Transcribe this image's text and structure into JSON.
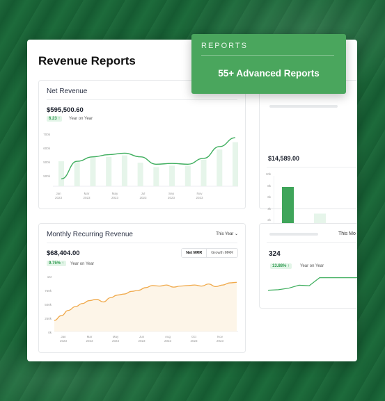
{
  "page": {
    "title": "Revenue Reports"
  },
  "banner": {
    "label": "REPORTS",
    "heading": "55+ Advanced Reports"
  },
  "net_revenue": {
    "title": "Net Revenue",
    "amount": "$595,500.60",
    "change": "6.23 ↑",
    "period": "Year on Year",
    "y_ticks": [
      "700k",
      "600k",
      "500k",
      "500k"
    ],
    "x_ticks": [
      {
        "month": "Jan",
        "year": "2023"
      },
      {
        "month": "Mar",
        "year": "2023"
      },
      {
        "month": "May",
        "year": "2023"
      },
      {
        "month": "Jul",
        "year": "2023"
      },
      {
        "month": "Sep",
        "year": "2023"
      },
      {
        "month": "Nov",
        "year": "2023"
      }
    ]
  },
  "side_top": {
    "amount": "$14,589.00",
    "y_ticks": [
      "10k",
      "8k",
      "6k",
      "4k",
      "2k",
      "0k"
    ],
    "x_ticks": [
      "Current",
      "Y-25"
    ]
  },
  "mrr": {
    "title": "Monthly Recurring Revenue",
    "dropdown": "This Year ⌄",
    "amount": "$68,404.00",
    "change": "9.75% ↑",
    "period": "Year on Year",
    "toggle": [
      "Net MRR",
      "Growth MRR"
    ],
    "y_ticks": [
      "1M",
      "750k",
      "500k",
      "250k",
      "0k"
    ],
    "x_ticks": [
      {
        "month": "Jan",
        "year": "2023"
      },
      {
        "month": "Mar",
        "year": "2023"
      },
      {
        "month": "May",
        "year": "2023"
      },
      {
        "month": "Jun",
        "year": "2023"
      },
      {
        "month": "Aug",
        "year": "2023"
      },
      {
        "month": "Oct",
        "year": "2023"
      },
      {
        "month": "Nov",
        "year": "2023"
      }
    ]
  },
  "side_bottom": {
    "dropdown": "This Mo",
    "amount": "324",
    "change": "13.88% ↑",
    "period": "Year on Year"
  },
  "chart_data": [
    {
      "type": "line",
      "title": "Net Revenue",
      "x": [
        "Jan",
        "Feb",
        "Mar",
        "Apr",
        "May",
        "Jun",
        "Jul",
        "Aug",
        "Sep",
        "Oct",
        "Nov",
        "Dec"
      ],
      "series": [
        {
          "values": [
            450,
            570,
            600,
            615,
            625,
            600,
            550,
            555,
            550,
            590,
            670,
            730
          ]
        }
      ],
      "bars": [
        570,
        570,
        600,
        600,
        610,
        560,
        530,
        540,
        540,
        580,
        650,
        700
      ],
      "ylim": [
        400,
        750
      ]
    },
    {
      "type": "bar",
      "categories": [
        "Current",
        "Y-25"
      ],
      "values": [
        8000,
        3200
      ],
      "ylim": [
        0,
        10000
      ]
    },
    {
      "type": "area",
      "title": "Monthly Recurring Revenue",
      "x": [
        0,
        1,
        2,
        3,
        4,
        5,
        6,
        7,
        8,
        9,
        10,
        11,
        12,
        13,
        14,
        15,
        16,
        17,
        18,
        19,
        20,
        21,
        22,
        23,
        24,
        25,
        26
      ],
      "series": [
        {
          "name": "Net MRR",
          "values": [
            210,
            300,
            400,
            470,
            530,
            585,
            610,
            560,
            640,
            690,
            710,
            760,
            780,
            830,
            870,
            860,
            880,
            840,
            860,
            870,
            880,
            860,
            900,
            850,
            880,
            920,
            930
          ]
        }
      ],
      "ylim": [
        0,
        1000
      ]
    },
    {
      "type": "line",
      "x": [
        0,
        1,
        2,
        3,
        4,
        5,
        6,
        7,
        8,
        9,
        10
      ],
      "series": [
        {
          "values": [
            40,
            42,
            48,
            60,
            58,
            90,
            90,
            90,
            90,
            90,
            90
          ]
        }
      ],
      "ylim": [
        0,
        100
      ]
    }
  ]
}
